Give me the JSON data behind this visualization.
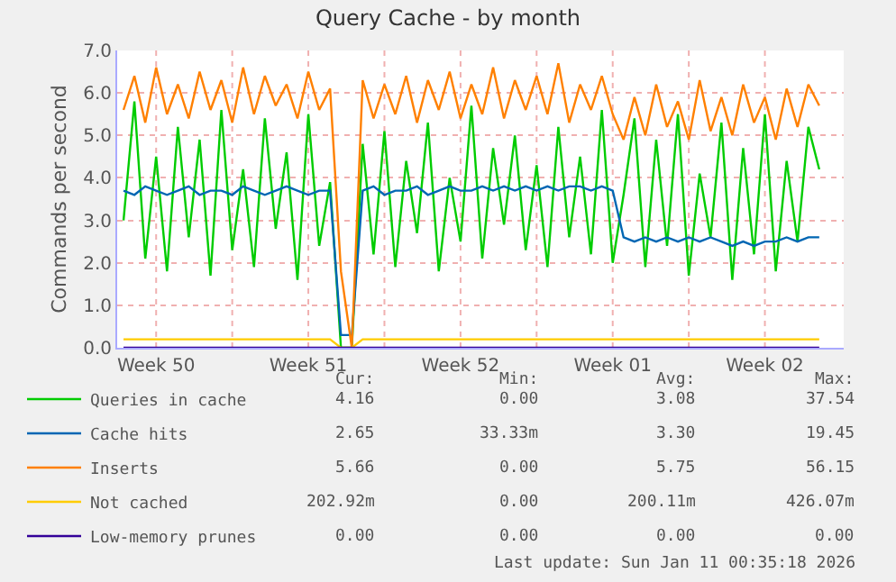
{
  "chart_data": {
    "type": "line",
    "title": "Query Cache - by month",
    "ylabel": "Commands per second",
    "x": [
      "2025-12-10T00:00",
      "2025-12-10T12:00",
      "2025-12-11T00:00",
      "2025-12-11T12:00",
      "2025-12-12T00:00",
      "2025-12-12T12:00",
      "2025-12-13T00:00",
      "2025-12-13T12:00",
      "2025-12-14T00:00",
      "2025-12-14T12:00",
      "2025-12-15T00:00",
      "2025-12-15T12:00",
      "2025-12-16T00:00",
      "2025-12-16T12:00",
      "2025-12-17T00:00",
      "2025-12-17T12:00",
      "2025-12-18T00:00",
      "2025-12-18T12:00",
      "2025-12-19T00:00",
      "2025-12-19T12:00",
      "2025-12-20T00:00",
      "2025-12-20T12:00",
      "2025-12-21T00:00",
      "2025-12-21T12:00",
      "2025-12-22T00:00",
      "2025-12-22T12:00",
      "2025-12-23T00:00",
      "2025-12-23T12:00",
      "2025-12-24T00:00",
      "2025-12-24T12:00",
      "2025-12-25T00:00",
      "2025-12-25T12:00",
      "2025-12-26T00:00",
      "2025-12-26T12:00",
      "2025-12-27T00:00",
      "2025-12-27T12:00",
      "2025-12-28T00:00",
      "2025-12-28T12:00",
      "2025-12-29T00:00",
      "2025-12-29T12:00",
      "2025-12-30T00:00",
      "2025-12-30T12:00",
      "2025-12-31T00:00",
      "2025-12-31T12:00",
      "2026-01-01T00:00",
      "2026-01-01T12:00",
      "2026-01-02T00:00",
      "2026-01-02T12:00",
      "2026-01-03T00:00",
      "2026-01-03T12:00",
      "2026-01-04T00:00",
      "2026-01-04T12:00",
      "2026-01-05T00:00",
      "2026-01-05T12:00",
      "2026-01-06T00:00",
      "2026-01-06T12:00",
      "2026-01-07T00:00",
      "2026-01-07T12:00",
      "2026-01-08T00:00",
      "2026-01-08T12:00",
      "2026-01-09T00:00",
      "2026-01-09T12:00",
      "2026-01-10T00:00",
      "2026-01-10T12:00",
      "2026-01-11T00:00"
    ],
    "series": [
      {
        "name": "Queries in cache",
        "color": "#00cc00",
        "values": [
          3.0,
          5.8,
          2.1,
          4.5,
          1.8,
          5.2,
          2.6,
          4.9,
          1.7,
          5.6,
          2.3,
          4.2,
          1.9,
          5.4,
          2.8,
          4.6,
          1.6,
          5.5,
          2.4,
          3.9,
          0,
          0,
          4.8,
          2.2,
          5.1,
          1.9,
          4.4,
          2.7,
          5.3,
          1.8,
          4.0,
          2.5,
          5.7,
          2.1,
          4.7,
          2.9,
          5.0,
          2.3,
          4.3,
          1.9,
          5.2,
          2.6,
          4.5,
          2.2,
          5.6,
          2.0,
          3.6,
          5.4,
          1.9,
          4.9,
          2.4,
          5.5,
          1.7,
          4.1,
          2.6,
          5.3,
          1.6,
          4.7,
          2.2,
          5.5,
          1.8,
          4.4,
          2.5,
          5.2,
          4.2
        ]
      },
      {
        "name": "Cache hits",
        "color": "#0066b3",
        "values": [
          3.7,
          3.6,
          3.8,
          3.7,
          3.6,
          3.7,
          3.8,
          3.6,
          3.7,
          3.7,
          3.6,
          3.8,
          3.7,
          3.6,
          3.7,
          3.8,
          3.7,
          3.6,
          3.7,
          3.7,
          0.3,
          0.3,
          3.7,
          3.8,
          3.6,
          3.7,
          3.7,
          3.8,
          3.6,
          3.7,
          3.8,
          3.7,
          3.7,
          3.8,
          3.7,
          3.8,
          3.7,
          3.8,
          3.7,
          3.8,
          3.7,
          3.8,
          3.8,
          3.7,
          3.8,
          3.7,
          2.6,
          2.5,
          2.6,
          2.5,
          2.6,
          2.5,
          2.6,
          2.5,
          2.6,
          2.5,
          2.4,
          2.5,
          2.4,
          2.5,
          2.5,
          2.6,
          2.5,
          2.6,
          2.6
        ]
      },
      {
        "name": "Inserts",
        "color": "#ff8000",
        "values": [
          5.6,
          6.4,
          5.3,
          6.6,
          5.5,
          6.2,
          5.4,
          6.5,
          5.6,
          6.3,
          5.3,
          6.6,
          5.5,
          6.4,
          5.7,
          6.2,
          5.4,
          6.5,
          5.6,
          6.1,
          1.8,
          0,
          6.3,
          5.4,
          6.2,
          5.5,
          6.4,
          5.3,
          6.3,
          5.6,
          6.5,
          5.4,
          6.2,
          5.5,
          6.6,
          5.4,
          6.3,
          5.6,
          6.4,
          5.5,
          6.7,
          5.3,
          6.2,
          5.6,
          6.4,
          5.5,
          4.9,
          5.9,
          5.0,
          6.2,
          5.2,
          5.8,
          4.9,
          6.3,
          5.1,
          5.9,
          5.0,
          6.2,
          5.3,
          5.9,
          4.9,
          6.1,
          5.2,
          6.2,
          5.7
        ]
      },
      {
        "name": "Not cached",
        "color": "#ffcc00",
        "values": [
          0.2,
          0.2,
          0.2,
          0.2,
          0.2,
          0.2,
          0.2,
          0.2,
          0.2,
          0.2,
          0.2,
          0.2,
          0.2,
          0.2,
          0.2,
          0.2,
          0.2,
          0.2,
          0.2,
          0.2,
          0,
          0,
          0.2,
          0.2,
          0.2,
          0.2,
          0.2,
          0.2,
          0.2,
          0.2,
          0.2,
          0.2,
          0.2,
          0.2,
          0.2,
          0.2,
          0.2,
          0.2,
          0.2,
          0.2,
          0.2,
          0.2,
          0.2,
          0.2,
          0.2,
          0.2,
          0.2,
          0.2,
          0.2,
          0.2,
          0.2,
          0.2,
          0.2,
          0.2,
          0.2,
          0.2,
          0.2,
          0.2,
          0.2,
          0.2,
          0.2,
          0.2,
          0.2,
          0.2,
          0.2
        ]
      },
      {
        "name": "Low-memory prunes",
        "color": "#330099",
        "values": [
          0,
          0,
          0,
          0,
          0,
          0,
          0,
          0,
          0,
          0,
          0,
          0,
          0,
          0,
          0,
          0,
          0,
          0,
          0,
          0,
          0,
          0,
          0,
          0,
          0,
          0,
          0,
          0,
          0,
          0,
          0,
          0,
          0,
          0,
          0,
          0,
          0,
          0,
          0,
          0,
          0,
          0,
          0,
          0,
          0,
          0,
          0,
          0,
          0,
          0,
          0,
          0,
          0,
          0,
          0,
          0,
          0,
          0,
          0,
          0,
          0,
          0,
          0,
          0,
          0
        ]
      }
    ],
    "xlim": [
      "2025-12-09T17:00",
      "2026-01-12T03:00"
    ],
    "xticks": [
      {
        "value": "2025-12-11T12:00",
        "label": "Week 50"
      },
      {
        "value": "2025-12-15T00:00",
        "label": null
      },
      {
        "value": "2025-12-18T12:00",
        "label": "Week 51"
      },
      {
        "value": "2025-12-22T00:00",
        "label": null
      },
      {
        "value": "2025-12-25T12:00",
        "label": "Week 52"
      },
      {
        "value": "2025-12-29T00:00",
        "label": null
      },
      {
        "value": "2026-01-01T12:00",
        "label": "Week 01"
      },
      {
        "value": "2026-01-05T00:00",
        "label": null
      },
      {
        "value": "2026-01-08T12:00",
        "label": "Week 02"
      }
    ],
    "ylim": [
      0,
      7
    ],
    "yticks": [
      {
        "value": 0,
        "label": "0.0"
      },
      {
        "value": 1,
        "label": "1.0"
      },
      {
        "value": 2,
        "label": "2.0"
      },
      {
        "value": 3,
        "label": "3.0"
      },
      {
        "value": 4,
        "label": "4.0"
      },
      {
        "value": 5,
        "label": "5.0"
      },
      {
        "value": 6,
        "label": "6.0"
      },
      {
        "value": 7,
        "label": "7.0"
      }
    ],
    "grid": true,
    "legend": "bottom left",
    "marker": "none",
    "line_style": "solid",
    "annotations": [
      "Cur:",
      "Min:",
      "Avg:",
      "Max:",
      "4.16",
      "0.00",
      "3.08",
      "37.54",
      "2.65",
      "33.33m",
      "3.30",
      "19.45",
      "5.66",
      "0.00",
      "5.75",
      "56.15",
      "202.92m",
      "0.00",
      "200.11m",
      "426.07m",
      "0.00",
      "0.00",
      "0.00",
      "0.00",
      "Last update: Sun Jan 11 00:35:18 2026"
    ]
  }
}
